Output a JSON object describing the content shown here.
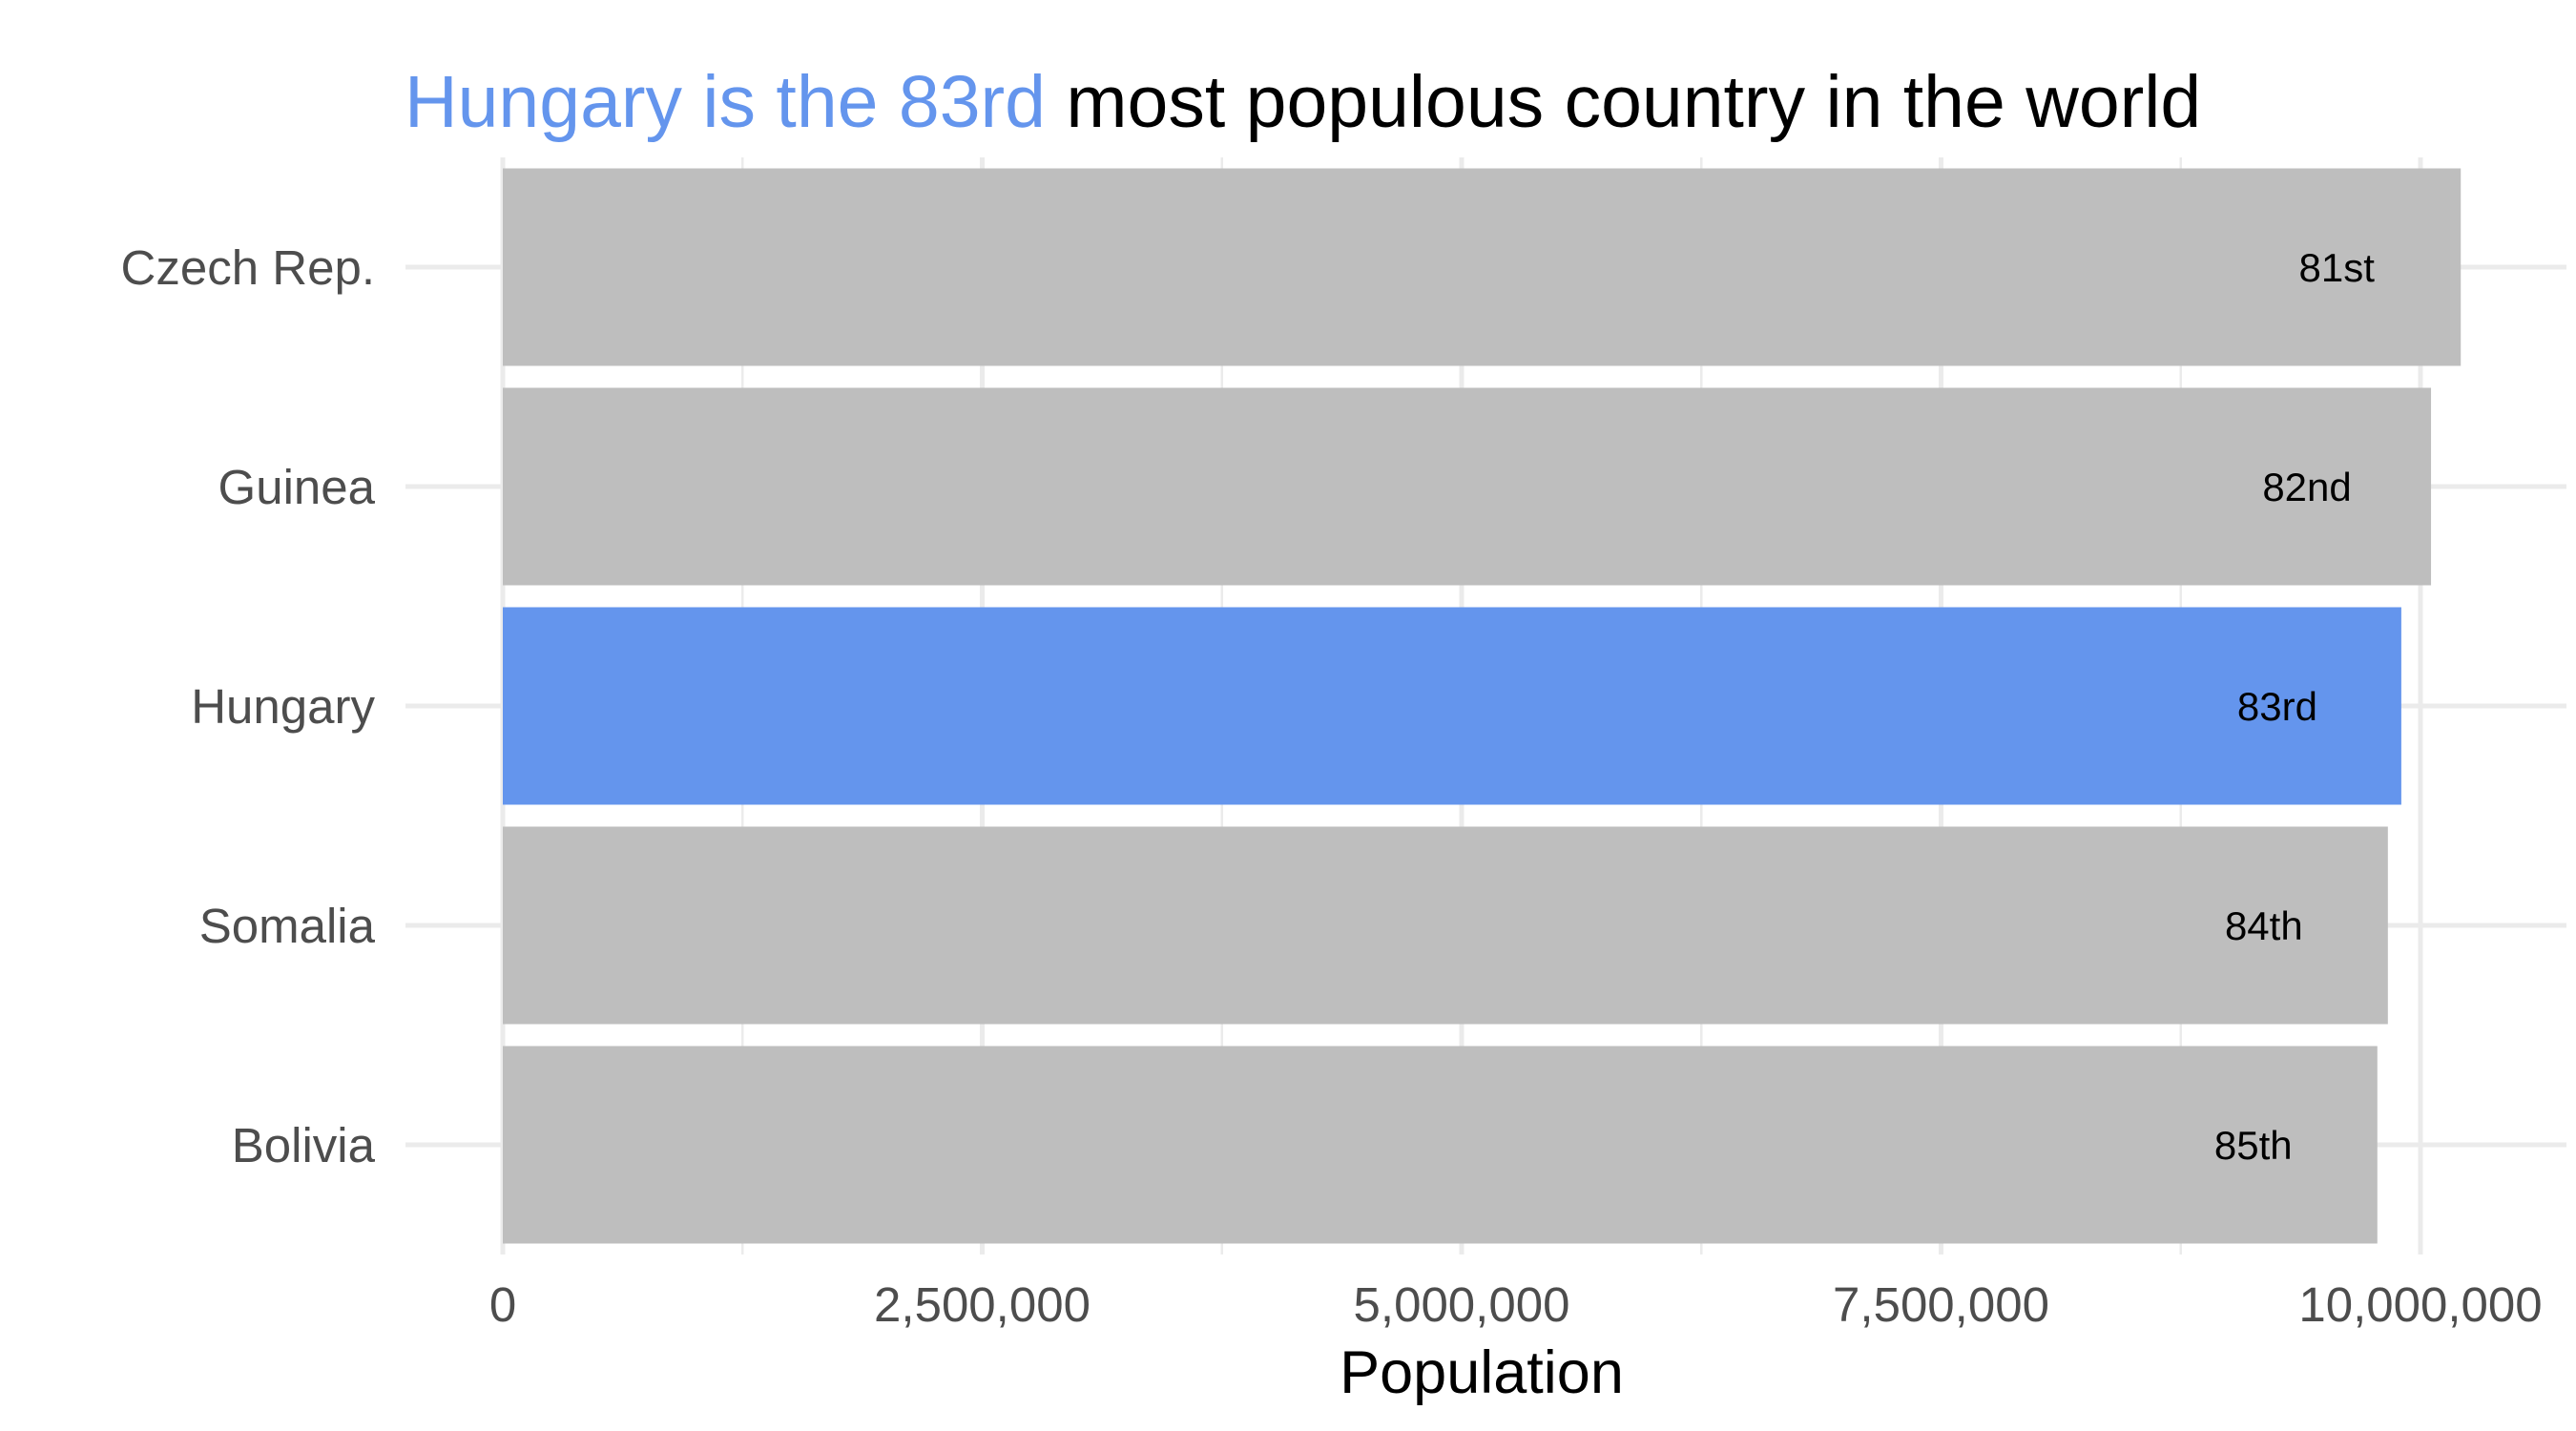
{
  "title": {
    "highlight": "Hungary is the 83rd",
    "rest": " most populous country in the world"
  },
  "colors": {
    "highlight": "#6495ed",
    "default_bar": "#bebebe",
    "grid": "#ebebeb",
    "axis_text": "#4d4d4d"
  },
  "chart_data": {
    "type": "bar",
    "orientation": "horizontal",
    "title": "Hungary is the 83rd most populous country in the world",
    "xlabel": "Population",
    "ylabel": "",
    "categories": [
      "Czech Rep.",
      "Guinea",
      "Hungary",
      "Somalia",
      "Bolivia"
    ],
    "values": [
      10210000,
      10055000,
      9900000,
      9830000,
      9775000
    ],
    "bar_labels": [
      "81st",
      "82nd",
      "83rd",
      "84th",
      "85th"
    ],
    "highlight_index": 2,
    "xlim": [
      0,
      10500000
    ],
    "x_ticks": [
      0,
      2500000,
      5000000,
      7500000,
      10000000
    ],
    "x_tick_labels": [
      "0",
      "2,500,000",
      "5,000,000",
      "7,500,000",
      "10,000,000"
    ],
    "grid": true,
    "legend": "none"
  }
}
